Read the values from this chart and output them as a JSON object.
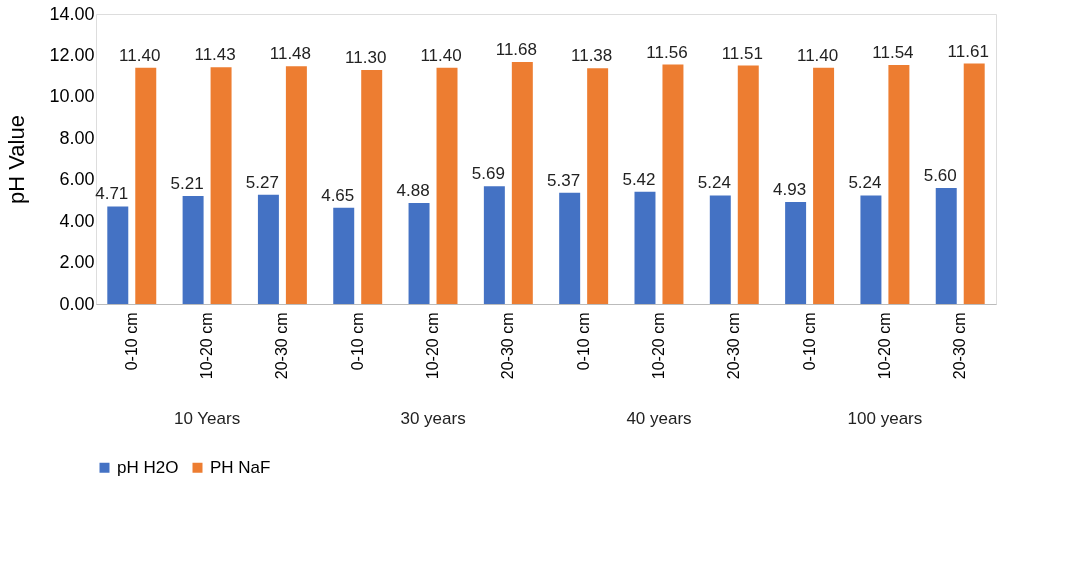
{
  "chart_data": {
    "type": "bar",
    "ylabel": "pH Value",
    "categories": [
      "0-10 cm",
      "10-20 cm",
      "20-30 cm",
      "0-10 cm",
      "10-20 cm",
      "20-30 cm",
      "0-10 cm",
      "10-20 cm",
      "20-30 cm",
      "0-10 cm",
      "10-20 cm",
      "20-30 cm"
    ],
    "annotations": [
      "10 Years",
      "30 years",
      "40 years",
      "100 years"
    ],
    "series": [
      {
        "name": "pH H2O",
        "color": "#4472c4",
        "values": [
          4.71,
          5.21,
          5.27,
          4.65,
          4.88,
          5.69,
          5.37,
          5.42,
          5.24,
          4.93,
          5.24,
          5.6
        ],
        "value_labels": [
          "4.71",
          "5.21",
          "5.27",
          "4.65",
          "4.88",
          "5.69",
          "5.37",
          "5.42",
          "5.24",
          "4.93",
          "5.24",
          "5.60"
        ]
      },
      {
        "name": "PH NaF",
        "color": "#ed7d31",
        "values": [
          11.4,
          11.43,
          11.48,
          11.3,
          11.4,
          11.68,
          11.38,
          11.56,
          11.51,
          11.4,
          11.54,
          11.61
        ],
        "value_labels": [
          "11.40",
          "11.43",
          "11.48",
          "11.30",
          "11.40",
          "11.68",
          "11.38",
          "11.56",
          "11.51",
          "11.40",
          "11.54",
          "11.61"
        ]
      }
    ],
    "ylim": [
      0,
      14
    ],
    "yticks": [
      {
        "value": 0,
        "label": "0.00"
      },
      {
        "value": 2,
        "label": "2.00"
      },
      {
        "value": 4,
        "label": "4.00"
      },
      {
        "value": 6,
        "label": "6.00"
      },
      {
        "value": 8,
        "label": "8.00"
      },
      {
        "value": 10,
        "label": "10.00"
      },
      {
        "value": 12,
        "label": "12.00"
      },
      {
        "value": 14,
        "label": "14.00"
      }
    ],
    "grid": false,
    "legend": "bottom"
  }
}
